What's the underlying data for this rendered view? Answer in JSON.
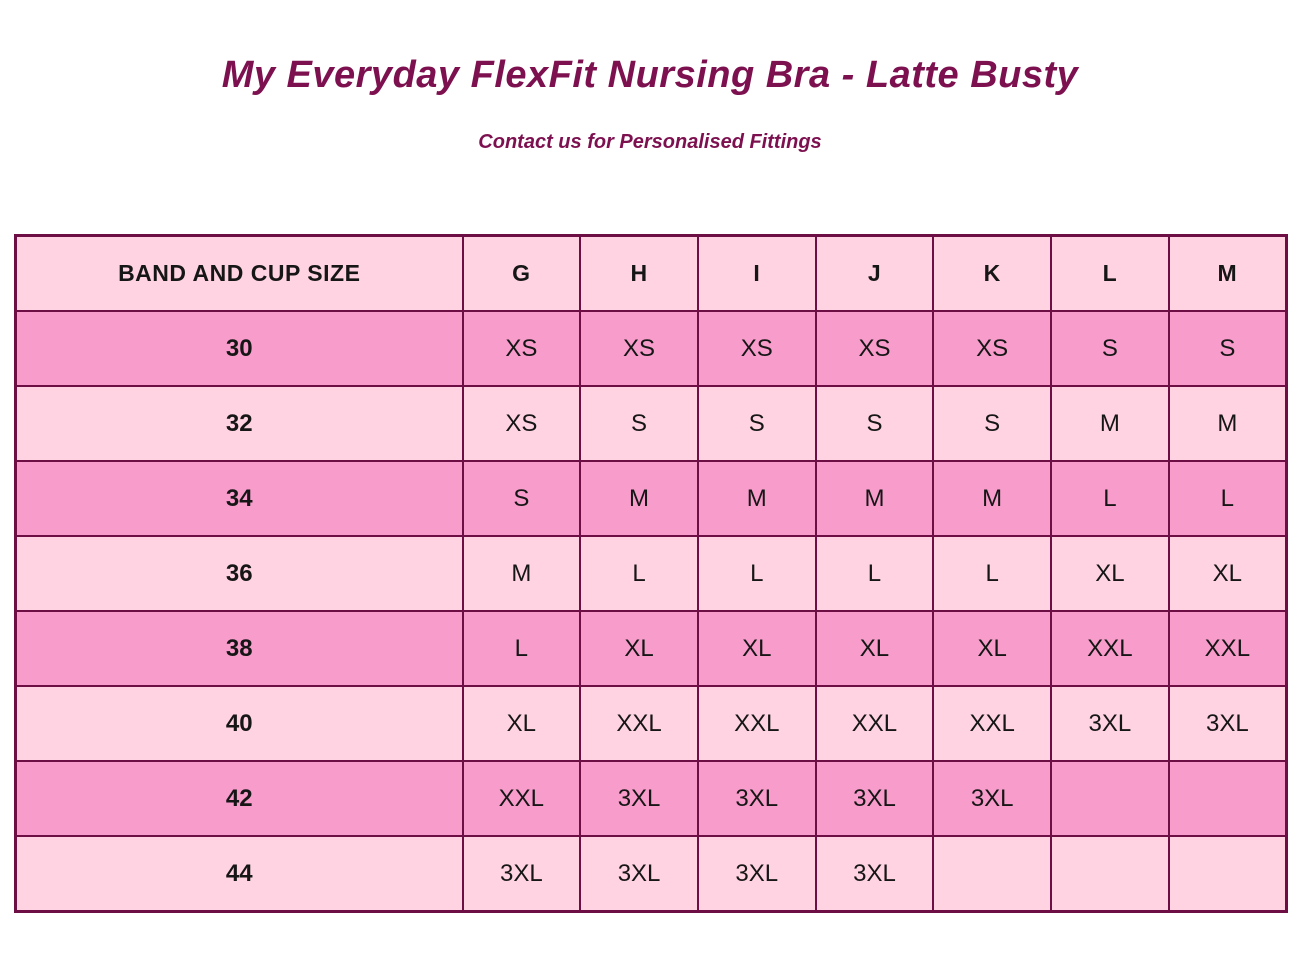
{
  "header": {
    "title": "My Everyday FlexFit Nursing Bra - Latte Busty",
    "subtitle": "Contact us for Personalised Fittings"
  },
  "colors": {
    "title_text": "#7d1150",
    "table_border": "#6d0e45",
    "row_light": "#ffd3e1",
    "row_dark": "#f79ccb",
    "cell_text": "#161616"
  },
  "chart_data": {
    "type": "table",
    "title": "My Everyday FlexFit Nursing Bra - Latte Busty",
    "subtitle": "Contact us for Personalised Fittings",
    "columns": [
      "BAND AND CUP SIZE",
      "G",
      "H",
      "I",
      "J",
      "K",
      "L",
      "M"
    ],
    "rows": [
      {
        "band": "30",
        "values": [
          "XS",
          "XS",
          "XS",
          "XS",
          "XS",
          "S",
          "S"
        ]
      },
      {
        "band": "32",
        "values": [
          "XS",
          "S",
          "S",
          "S",
          "S",
          "M",
          "M"
        ]
      },
      {
        "band": "34",
        "values": [
          "S",
          "M",
          "M",
          "M",
          "M",
          "L",
          "L"
        ]
      },
      {
        "band": "36",
        "values": [
          "M",
          "L",
          "L",
          "L",
          "L",
          "XL",
          "XL"
        ]
      },
      {
        "band": "38",
        "values": [
          "L",
          "XL",
          "XL",
          "XL",
          "XL",
          "XXL",
          "XXL"
        ]
      },
      {
        "band": "40",
        "values": [
          "XL",
          "XXL",
          "XXL",
          "XXL",
          "XXL",
          "3XL",
          "3XL"
        ]
      },
      {
        "band": "42",
        "values": [
          "XXL",
          "3XL",
          "3XL",
          "3XL",
          "3XL",
          "",
          ""
        ]
      },
      {
        "band": "44",
        "values": [
          "3XL",
          "3XL",
          "3XL",
          "3XL",
          "",
          "",
          ""
        ]
      }
    ],
    "layout": {
      "row_shading_order": [
        "dark",
        "light",
        "dark",
        "light",
        "dark",
        "light",
        "dark",
        "light"
      ],
      "header_shading": "light"
    }
  }
}
